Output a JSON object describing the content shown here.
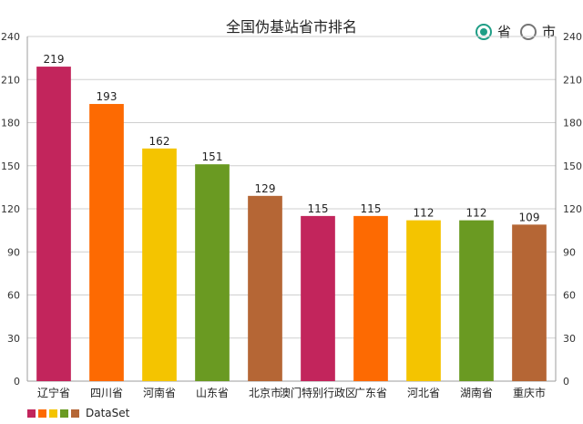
{
  "radio": {
    "options": [
      {
        "label": "省",
        "checked": true
      },
      {
        "label": "市",
        "checked": false
      }
    ],
    "accent_color": "#1f9e86"
  },
  "legend": {
    "label": "DataSet",
    "colors": [
      "#c2255c",
      "#fd6a02",
      "#f4c400",
      "#6a9a22",
      "#b56635"
    ]
  },
  "chart_data": {
    "type": "bar",
    "title": "全国伪基站省市排名",
    "categories": [
      "辽宁省",
      "四川省",
      "河南省",
      "山东省",
      "北京市",
      "澳门特别行政区",
      "广东省",
      "河北省",
      "湖南省",
      "重庆市"
    ],
    "values": [
      219,
      193,
      162,
      151,
      129,
      115,
      115,
      112,
      112,
      109
    ],
    "series": [
      {
        "name": "DataSet",
        "values": [
          219,
          193,
          162,
          151,
          129,
          115,
          115,
          112,
          112,
          109
        ]
      }
    ],
    "colors": [
      "#c2255c",
      "#fd6a02",
      "#f4c400",
      "#6a9a22",
      "#b56635",
      "#c2255c",
      "#fd6a02",
      "#f4c400",
      "#6a9a22",
      "#b56635"
    ],
    "yticks": [
      0,
      30,
      60,
      90,
      120,
      150,
      180,
      210,
      240
    ],
    "ylim": [
      0,
      240
    ],
    "grid": true,
    "dual_y_axis": true,
    "legend_position": "bottom-left"
  }
}
